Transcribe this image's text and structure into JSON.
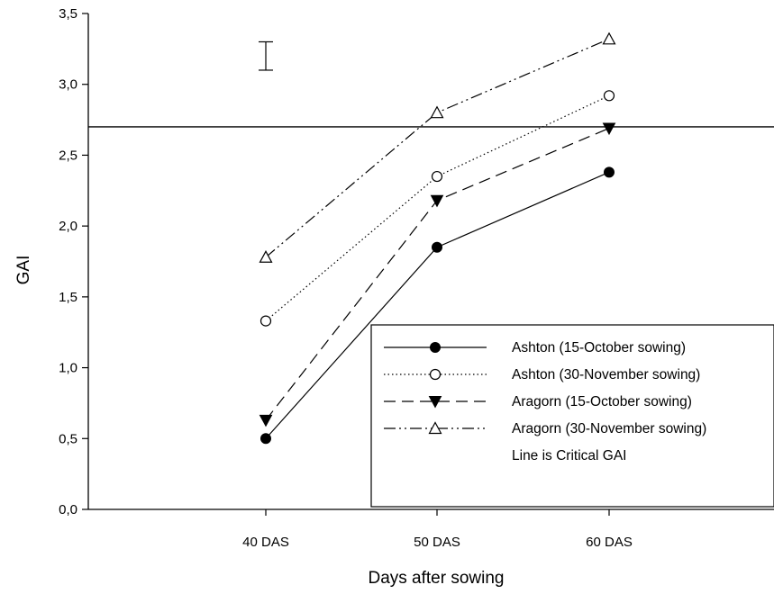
{
  "chart_data": {
    "type": "line",
    "title": "",
    "xlabel": "Days after sowing",
    "ylabel": "GAI",
    "categories": [
      "40 DAS",
      "50 DAS",
      "60 DAS"
    ],
    "ylim": [
      0,
      3.5
    ],
    "yticks": [
      "0,0",
      "0,5",
      "1,0",
      "1,5",
      "2,0",
      "2,5",
      "3,0",
      "3,5"
    ],
    "grid": false,
    "legend_position": "bottom-right",
    "critical_line": {
      "value": 2.7,
      "label": "Line is Critical GAI"
    },
    "error_bar": {
      "low": 3.1,
      "high": 3.3
    },
    "series": [
      {
        "name": "Ashton (15-October sowing)",
        "values": [
          0.5,
          1.85,
          2.38
        ],
        "marker": "circle-filled",
        "dash": "solid"
      },
      {
        "name": "Ashton (30-November sowing)",
        "values": [
          1.33,
          2.35,
          2.92
        ],
        "marker": "circle-open",
        "dash": "dotted"
      },
      {
        "name": "Aragorn (15-October sowing)",
        "values": [
          0.63,
          2.18,
          2.69
        ],
        "marker": "triangle-down-filled",
        "dash": "dashed"
      },
      {
        "name": "Aragorn (30-November sowing)",
        "values": [
          1.78,
          2.8,
          3.32
        ],
        "marker": "triangle-up-open",
        "dash": "dash-dot-dot"
      }
    ]
  }
}
